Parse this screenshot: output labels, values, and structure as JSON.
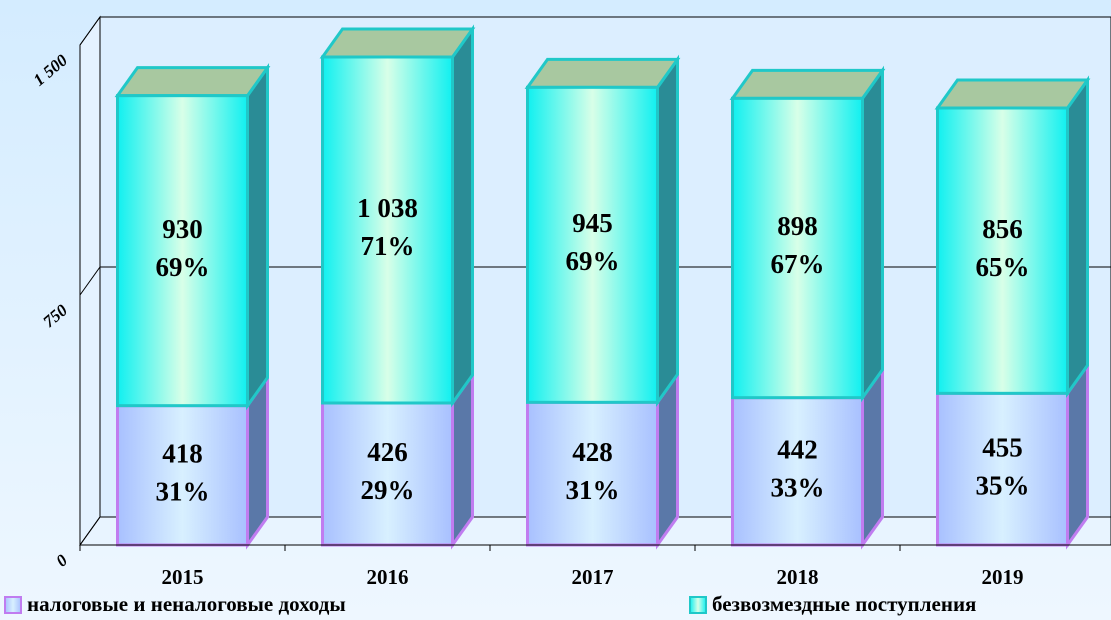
{
  "chart_data": {
    "type": "bar3d_stacked",
    "categories": [
      "2015",
      "2016",
      "2017",
      "2018",
      "2019"
    ],
    "series": [
      {
        "name": "налоговые и неналоговые доходы",
        "color": "#b4ccff",
        "edge": "#c07cf0",
        "values": [
          418,
          426,
          428,
          442,
          455
        ],
        "value_labels": [
          "418",
          "426",
          "428",
          "442",
          "455"
        ],
        "share_labels": [
          "31%",
          "29%",
          "31%",
          "33%",
          "35%"
        ]
      },
      {
        "name": "безвозмездные поступления",
        "color": "#1cf4f4",
        "edge": "#20c8c8",
        "values": [
          930,
          1038,
          945,
          898,
          856
        ],
        "value_labels": [
          "930",
          "1 038",
          "945",
          "898",
          "856"
        ],
        "share_labels": [
          "69%",
          "71%",
          "69%",
          "67%",
          "65%"
        ]
      }
    ],
    "ylim": [
      0,
      1500
    ],
    "yticks": [
      0,
      750,
      {
        "value": 1500,
        "label": "1 500"
      }
    ],
    "grid": true
  }
}
